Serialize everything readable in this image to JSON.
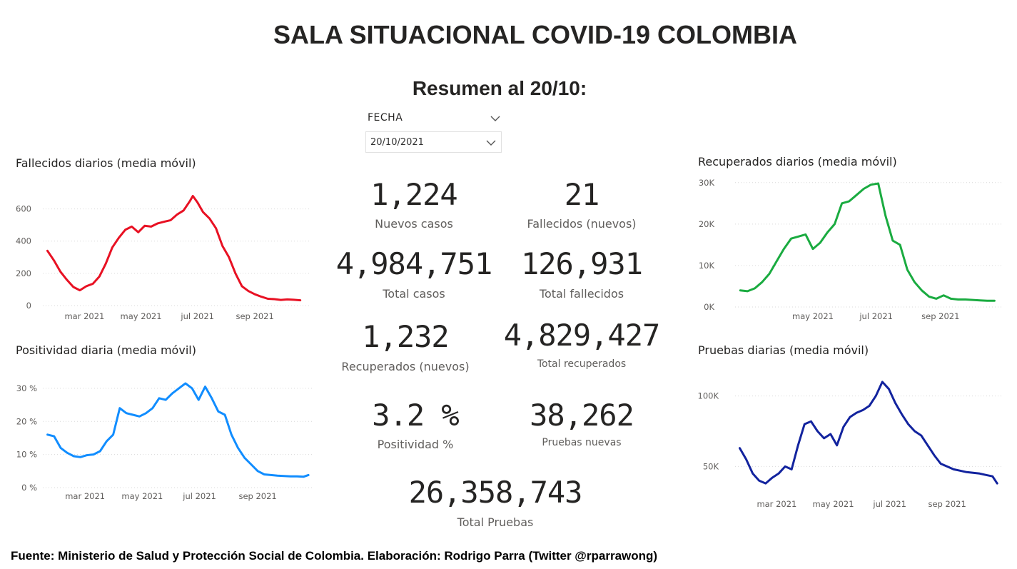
{
  "header": {
    "title": "SALA SITUACIONAL COVID-19 COLOMBIA",
    "subtitle": "Resumen al 20/10:"
  },
  "filter": {
    "label": "FECHA",
    "value": "20/10/2021"
  },
  "kpis": [
    {
      "value": "1,224",
      "label": "Nuevos casos"
    },
    {
      "value": "21",
      "label": "Fallecidos (nuevos)"
    },
    {
      "value": "4,984,751",
      "label": "Total casos"
    },
    {
      "value": "126,931",
      "label": "Total fallecidos"
    },
    {
      "value": "1,232",
      "label": "Recuperados (nuevos)"
    },
    {
      "value": "4,829,427",
      "label": "Total recuperados"
    },
    {
      "value": "3.2 %",
      "label": "Positividad %"
    },
    {
      "value": "38,262",
      "label": "Pruebas nuevas"
    },
    {
      "value": "26,358,743",
      "label": "Total Pruebas"
    }
  ],
  "footer": "Fuente: Ministerio de Salud y Protección Social de Colombia. Elaboración: Rodrigo Parra (Twitter @rparrawong)",
  "chart_data": [
    {
      "id": "fallecidos",
      "type": "line",
      "title": "Fallecidos diarios (media móvil)",
      "color": "#e81123",
      "ylim": [
        0,
        700
      ],
      "yticks": [
        0,
        200,
        400,
        600
      ],
      "ytick_labels": [
        "0",
        "200",
        "400",
        "600"
      ],
      "xlim": [
        "2021-01-15",
        "2021-10-31"
      ],
      "xticks": [
        "2021-03-01",
        "2021-05-01",
        "2021-07-01",
        "2021-09-01"
      ],
      "xtick_labels": [
        "mar 2021",
        "may 2021",
        "jul 2021",
        "sep 2021"
      ],
      "grid": true,
      "x": [
        "2021-01-20",
        "2021-01-27",
        "2021-02-03",
        "2021-02-10",
        "2021-02-17",
        "2021-02-24",
        "2021-03-03",
        "2021-03-10",
        "2021-03-17",
        "2021-03-24",
        "2021-03-31",
        "2021-04-07",
        "2021-04-14",
        "2021-04-21",
        "2021-04-28",
        "2021-05-05",
        "2021-05-12",
        "2021-05-19",
        "2021-05-26",
        "2021-06-02",
        "2021-06-09",
        "2021-06-16",
        "2021-06-23",
        "2021-06-26",
        "2021-07-01",
        "2021-07-07",
        "2021-07-14",
        "2021-07-21",
        "2021-07-28",
        "2021-08-04",
        "2021-08-11",
        "2021-08-18",
        "2021-08-25",
        "2021-09-01",
        "2021-09-08",
        "2021-09-15",
        "2021-09-22",
        "2021-09-29",
        "2021-10-06",
        "2021-10-13",
        "2021-10-20"
      ],
      "values": [
        340,
        280,
        210,
        160,
        115,
        95,
        120,
        135,
        180,
        260,
        360,
        420,
        470,
        490,
        455,
        495,
        490,
        510,
        520,
        530,
        565,
        590,
        650,
        680,
        640,
        580,
        540,
        480,
        370,
        300,
        200,
        120,
        90,
        70,
        55,
        42,
        40,
        35,
        38,
        36,
        33
      ]
    },
    {
      "id": "positividad",
      "type": "line",
      "title": "Positividad diaria (media móvil)",
      "color": "#118dff",
      "ylim": [
        0,
        33
      ],
      "yticks": [
        0,
        10,
        20,
        30
      ],
      "ytick_labels": [
        "0 %",
        "10 %",
        "20 %",
        "30 %"
      ],
      "xlim": [
        "2021-01-15",
        "2021-10-31"
      ],
      "xticks": [
        "2021-03-01",
        "2021-05-01",
        "2021-07-01",
        "2021-09-01"
      ],
      "xtick_labels": [
        "mar 2021",
        "may 2021",
        "jul 2021",
        "sep 2021"
      ],
      "grid": true,
      "x": [
        "2021-01-20",
        "2021-01-27",
        "2021-02-03",
        "2021-02-10",
        "2021-02-17",
        "2021-02-24",
        "2021-03-03",
        "2021-03-10",
        "2021-03-17",
        "2021-03-24",
        "2021-03-31",
        "2021-04-07",
        "2021-04-14",
        "2021-04-21",
        "2021-04-28",
        "2021-05-05",
        "2021-05-12",
        "2021-05-19",
        "2021-05-26",
        "2021-06-02",
        "2021-06-09",
        "2021-06-16",
        "2021-06-23",
        "2021-06-30",
        "2021-07-07",
        "2021-07-14",
        "2021-07-21",
        "2021-07-28",
        "2021-08-04",
        "2021-08-11",
        "2021-08-18",
        "2021-08-25",
        "2021-09-01",
        "2021-09-08",
        "2021-09-15",
        "2021-09-22",
        "2021-09-29",
        "2021-10-06",
        "2021-10-13",
        "2021-10-20",
        "2021-10-25"
      ],
      "values": [
        16,
        15.5,
        12,
        10.5,
        9.5,
        9.2,
        9.8,
        10,
        11,
        14,
        16,
        24,
        22.5,
        22,
        21.5,
        22.5,
        24,
        27,
        26.5,
        28.5,
        30,
        31.5,
        30,
        26.5,
        30.5,
        27,
        23,
        22,
        16,
        12,
        9,
        7,
        5,
        4,
        3.8,
        3.6,
        3.5,
        3.4,
        3.4,
        3.3,
        3.8
      ]
    },
    {
      "id": "recuperados",
      "type": "line",
      "title": "Recuperados diarios (media móvil)",
      "color": "#1aab40",
      "ylim": [
        0,
        31000
      ],
      "yticks": [
        0,
        10000,
        20000,
        30000
      ],
      "ytick_labels": [
        "0K",
        "10K",
        "20K",
        "30K"
      ],
      "xlim": [
        "2021-02-15",
        "2021-10-31"
      ],
      "xticks": [
        "2021-05-01",
        "2021-07-01",
        "2021-09-01"
      ],
      "xtick_labels": [
        "may 2021",
        "jul 2021",
        "sep 2021"
      ],
      "grid": true,
      "x": [
        "2021-02-20",
        "2021-02-27",
        "2021-03-06",
        "2021-03-13",
        "2021-03-20",
        "2021-03-27",
        "2021-04-03",
        "2021-04-10",
        "2021-04-17",
        "2021-04-24",
        "2021-05-01",
        "2021-05-08",
        "2021-05-15",
        "2021-05-22",
        "2021-05-29",
        "2021-06-05",
        "2021-06-12",
        "2021-06-19",
        "2021-06-26",
        "2021-07-03",
        "2021-07-10",
        "2021-07-17",
        "2021-07-24",
        "2021-07-31",
        "2021-08-07",
        "2021-08-14",
        "2021-08-21",
        "2021-08-28",
        "2021-09-04",
        "2021-09-11",
        "2021-09-18",
        "2021-09-25",
        "2021-10-02",
        "2021-10-09",
        "2021-10-16",
        "2021-10-23"
      ],
      "values": [
        4000,
        3800,
        4500,
        6000,
        8000,
        11000,
        14000,
        16500,
        17000,
        17500,
        14000,
        15500,
        18000,
        20000,
        25000,
        25500,
        27000,
        28500,
        29500,
        29800,
        22000,
        16000,
        15000,
        9000,
        6000,
        4000,
        2500,
        2000,
        2800,
        2000,
        1800,
        1800,
        1700,
        1600,
        1500,
        1500
      ]
    },
    {
      "id": "pruebas",
      "type": "line",
      "title": "Pruebas diarias (media móvil)",
      "color": "#12239e",
      "ylim": [
        33000,
        115000
      ],
      "yticks": [
        50000,
        100000
      ],
      "ytick_labels": [
        "50K",
        "100K"
      ],
      "xlim": [
        "2021-01-15",
        "2021-10-31"
      ],
      "xticks": [
        "2021-03-01",
        "2021-05-01",
        "2021-07-01",
        "2021-09-01"
      ],
      "xtick_labels": [
        "mar 2021",
        "may 2021",
        "jul 2021",
        "sep 2021"
      ],
      "grid": true,
      "x": [
        "2021-01-20",
        "2021-01-27",
        "2021-02-03",
        "2021-02-10",
        "2021-02-17",
        "2021-02-24",
        "2021-03-03",
        "2021-03-10",
        "2021-03-17",
        "2021-03-24",
        "2021-03-31",
        "2021-04-07",
        "2021-04-14",
        "2021-04-21",
        "2021-04-28",
        "2021-05-05",
        "2021-05-12",
        "2021-05-19",
        "2021-05-26",
        "2021-06-02",
        "2021-06-09",
        "2021-06-16",
        "2021-06-23",
        "2021-06-30",
        "2021-07-07",
        "2021-07-14",
        "2021-07-21",
        "2021-07-28",
        "2021-08-04",
        "2021-08-11",
        "2021-08-18",
        "2021-08-25",
        "2021-09-01",
        "2021-09-08",
        "2021-09-15",
        "2021-09-22",
        "2021-09-29",
        "2021-10-06",
        "2021-10-13",
        "2021-10-20",
        "2021-10-25"
      ],
      "values": [
        63000,
        55000,
        45000,
        40000,
        38000,
        42000,
        45000,
        50000,
        48000,
        65000,
        80000,
        82000,
        75000,
        70000,
        73000,
        65000,
        78000,
        85000,
        88000,
        90000,
        93000,
        100000,
        110000,
        105000,
        95000,
        87000,
        80000,
        75000,
        72000,
        65000,
        58000,
        52000,
        50000,
        48000,
        47000,
        46000,
        45500,
        45000,
        44000,
        43000,
        38000
      ]
    }
  ]
}
